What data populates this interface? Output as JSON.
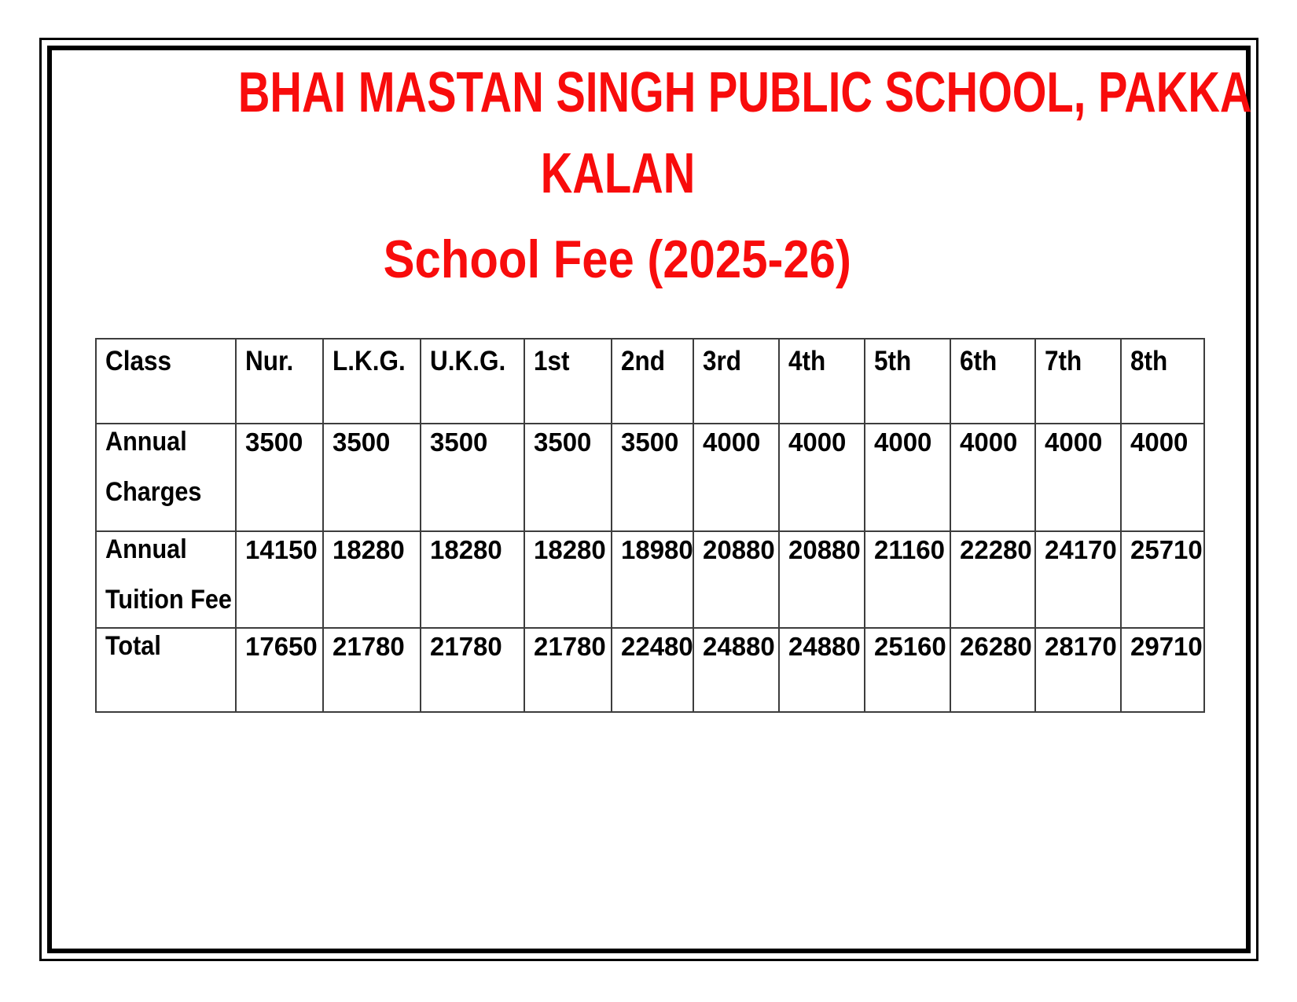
{
  "header": {
    "school_name_lines": [
      "BHAI MASTAN SINGH PUBLIC SCHOOL, PAKKA",
      "KALAN"
    ],
    "subtitle": "School Fee (2025-26)",
    "text_color": "#f80c0c"
  },
  "fee_table": {
    "columns": [
      "Class",
      "Nur.",
      "L.K.G.",
      "U.K.G.",
      "1st",
      "2nd",
      "3rd",
      "4th",
      "5th",
      "6th",
      "7th",
      "8th"
    ],
    "rows": [
      {
        "label_lines": [
          "Annual",
          "Charges"
        ],
        "values": [
          "3500",
          "3500",
          "3500",
          "3500",
          "3500",
          "4000",
          "4000",
          "4000",
          "4000",
          "4000",
          "4000"
        ]
      },
      {
        "label_lines": [
          "Annual",
          "Tuition Fee"
        ],
        "values": [
          "14150",
          "18280",
          "18280",
          "18280",
          "18980",
          "20880",
          "20880",
          "21160",
          "22280",
          "24170",
          "25710"
        ]
      },
      {
        "label_lines": [
          "Total"
        ],
        "values": [
          "17650",
          "21780",
          "21780",
          "21780",
          "22480",
          "24880",
          "24880",
          "25160",
          "26280",
          "28170",
          "29710"
        ]
      }
    ]
  }
}
